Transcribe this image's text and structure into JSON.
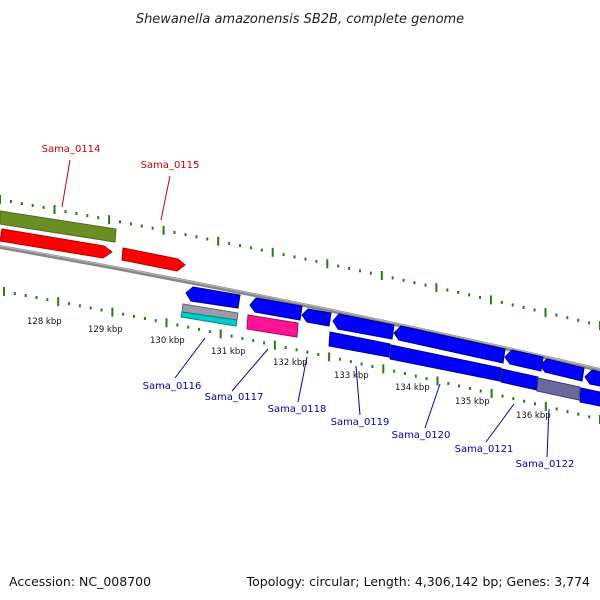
{
  "title": "Shewanella amazonensis SB2B, complete genome",
  "accession": "Accession: NC_008700",
  "topology": "Topology: circular; Length: 4,306,142 bp; Genes: 3,774",
  "colors": {
    "forward_label": "#cc0000",
    "reverse_label": "#0000bb",
    "tick": "#2a7a12",
    "backbone": "#8a8a8a",
    "forward_gene": "#ff0000",
    "reverse_gene": "#0000ff",
    "olive_feature": "#6b8e23",
    "magenta_feature": "#ff1493",
    "cyan_feature": "#00cccc",
    "slate_feature": "#6b6b9b"
  },
  "scale": {
    "labels": [
      "128 kbp",
      "129 kbp",
      "130 kbp",
      "131 kbp",
      "132 kbp",
      "133 kbp",
      "134 kbp",
      "135 kbp",
      "136 kbp"
    ]
  },
  "genes": {
    "forward": [
      "Sama_0114",
      "Sama_0115"
    ],
    "reverse": [
      "Sama_0116",
      "Sama_0117",
      "Sama_0118",
      "Sama_0119",
      "Sama_0120",
      "Sama_0121",
      "Sama_0122"
    ]
  }
}
